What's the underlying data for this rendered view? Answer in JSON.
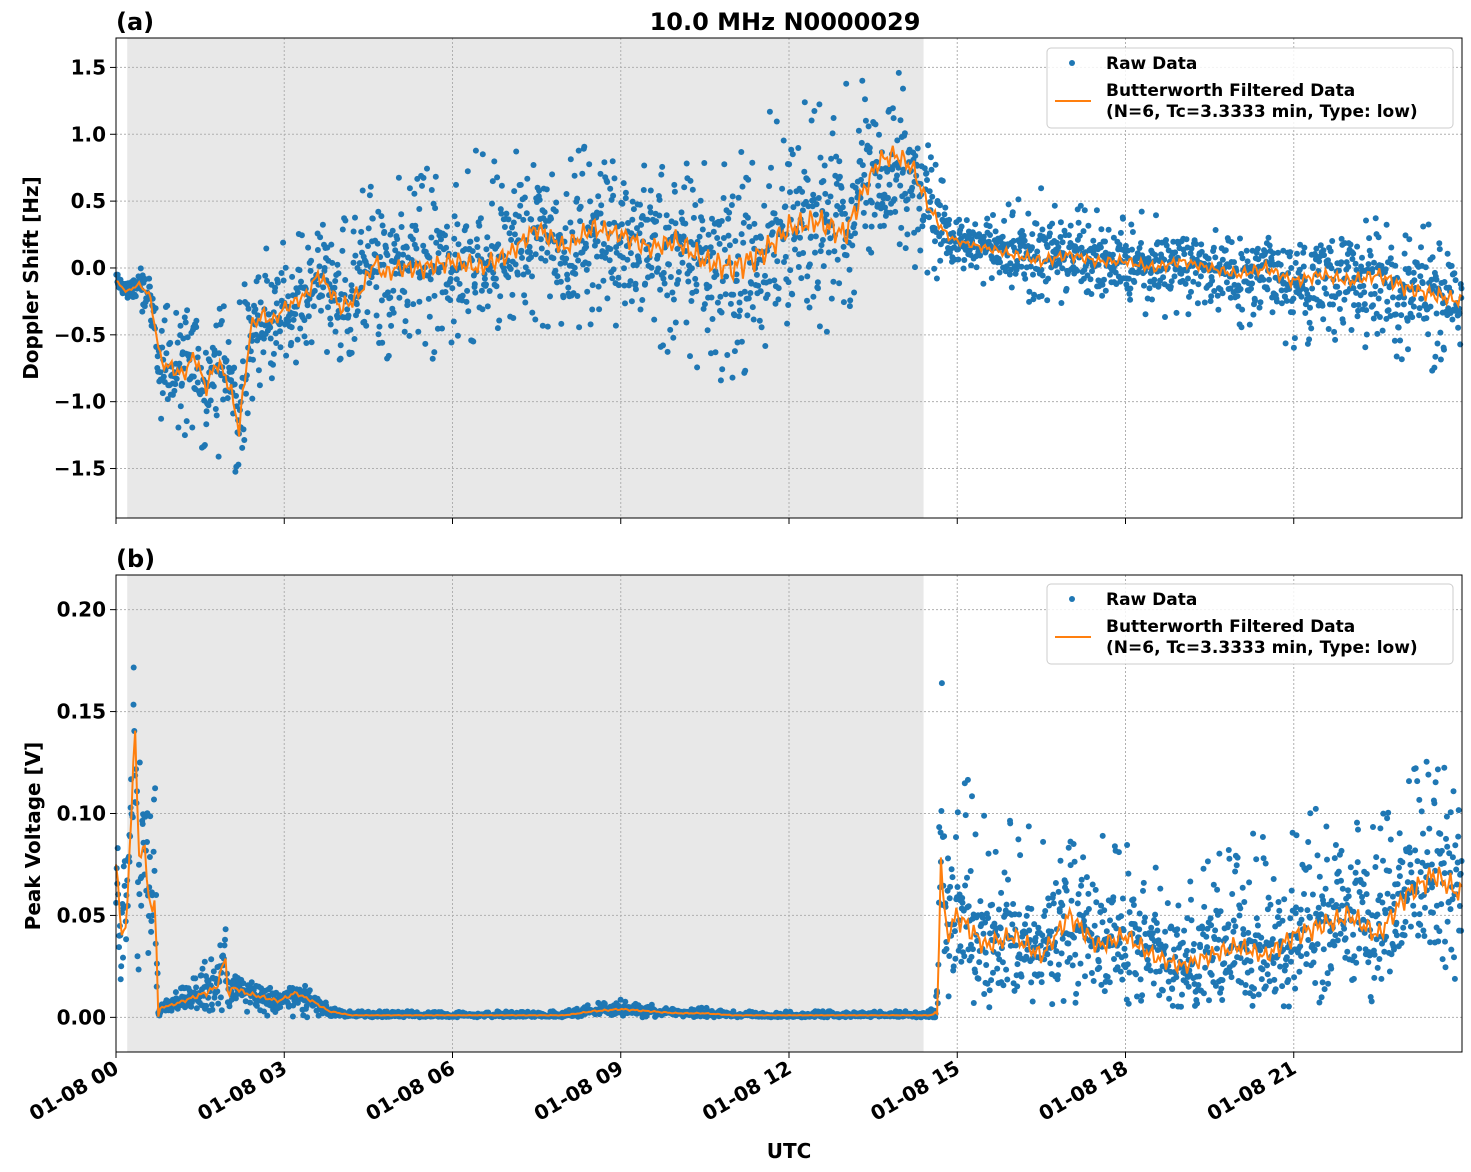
{
  "figure": {
    "title": "10.0 MHz N0000029",
    "xlabel": "UTC"
  },
  "colors": {
    "raw": "#1f77b4",
    "filtered": "#ff7f0e",
    "night_shade": "#e8e8e8"
  },
  "chart_data": [
    {
      "type": "scatter",
      "panel_label": "(a)",
      "ylabel": "Doppler Shift [Hz]",
      "xlim_hours": [
        0,
        24
      ],
      "ylim": [
        -1.87,
        1.72
      ],
      "yticks": [
        -1.5,
        -1.0,
        -0.5,
        0.0,
        0.5,
        1.0,
        1.5
      ],
      "ytick_labels": [
        "−1.5",
        "−1.0",
        "−0.5",
        "0.0",
        "0.5",
        "1.0",
        "1.5"
      ],
      "xticks_hours": [
        0,
        3,
        6,
        9,
        12,
        15,
        18,
        21
      ],
      "xtick_labels": [
        "01-08 00",
        "01-08 03",
        "01-08 06",
        "01-08 09",
        "01-08 12",
        "01-08 15",
        "01-08 18",
        "01-08 21"
      ],
      "shaded_region_hours": [
        0.2,
        14.4
      ],
      "grid": true,
      "legend_position": "top-right",
      "legend": {
        "raw": "Raw Data",
        "filtered_line1": "Butterworth Filtered Data",
        "filtered_line2": "(N=6, Tc=3.3333 min, Type: low)"
      },
      "series": [
        {
          "name": "Butterworth Filtered Data",
          "x_hours": [
            0,
            0.2,
            0.4,
            0.6,
            0.8,
            1.0,
            1.2,
            1.4,
            1.6,
            1.8,
            2.0,
            2.2,
            2.4,
            2.6,
            2.8,
            3.0,
            3.2,
            3.4,
            3.6,
            3.8,
            4.0,
            4.2,
            4.4,
            4.6,
            4.8,
            5.0,
            5.5,
            6.0,
            6.5,
            7.0,
            7.5,
            8.0,
            8.5,
            9.0,
            9.5,
            10.0,
            10.5,
            11.0,
            11.5,
            12.0,
            12.5,
            13.0,
            13.3,
            13.6,
            13.9,
            14.2,
            14.5,
            14.8,
            15.0,
            15.5,
            16.0,
            16.5,
            17.0,
            17.5,
            18.0,
            18.5,
            19.0,
            19.5,
            20.0,
            20.5,
            21.0,
            21.5,
            22.0,
            22.5,
            23.0,
            23.5,
            24.0
          ],
          "y": [
            -0.1,
            -0.18,
            -0.12,
            -0.2,
            -0.7,
            -0.75,
            -0.8,
            -0.65,
            -0.9,
            -0.7,
            -0.85,
            -1.2,
            -0.45,
            -0.35,
            -0.4,
            -0.3,
            -0.25,
            -0.2,
            -0.05,
            -0.15,
            -0.3,
            -0.25,
            -0.15,
            0.05,
            -0.05,
            0.0,
            0.0,
            0.05,
            0.0,
            0.1,
            0.3,
            0.15,
            0.3,
            0.25,
            0.15,
            0.2,
            0.05,
            0.0,
            0.1,
            0.3,
            0.35,
            0.25,
            0.55,
            0.8,
            0.85,
            0.75,
            0.45,
            0.25,
            0.2,
            0.15,
            0.1,
            0.05,
            0.1,
            0.05,
            0.05,
            0.0,
            0.05,
            0.0,
            -0.05,
            0.0,
            -0.1,
            -0.05,
            -0.1,
            -0.05,
            -0.15,
            -0.2,
            -0.25
          ]
        },
        {
          "name": "Raw Data",
          "x_hours": [
            0,
            0.2,
            0.4,
            0.6,
            0.8,
            1.0,
            1.2,
            1.4,
            1.6,
            1.8,
            2.0,
            2.2,
            2.4,
            2.6,
            2.8,
            3.0,
            3.2,
            3.4,
            3.6,
            3.8,
            4.0,
            4.2,
            4.4,
            4.6,
            4.8,
            5.0,
            5.5,
            6.0,
            6.5,
            7.0,
            7.5,
            8.0,
            8.5,
            9.0,
            9.5,
            10.0,
            10.5,
            11.0,
            11.5,
            12.0,
            12.5,
            13.0,
            13.3,
            13.6,
            13.9,
            14.2,
            14.5,
            14.8,
            15.0,
            15.5,
            16.0,
            16.5,
            17.0,
            17.5,
            18.0,
            18.5,
            19.0,
            19.5,
            20.0,
            20.5,
            21.0,
            21.5,
            22.0,
            22.5,
            23.0,
            23.5,
            24.0
          ],
          "y_min": [
            -0.3,
            -0.3,
            -0.3,
            -0.4,
            -1.2,
            -1.3,
            -1.4,
            -1.3,
            -1.5,
            -1.4,
            -1.6,
            -1.7,
            -1.0,
            -0.9,
            -0.9,
            -0.8,
            -0.75,
            -0.7,
            -0.6,
            -0.7,
            -0.8,
            -0.75,
            -0.7,
            -0.6,
            -0.7,
            -0.6,
            -0.7,
            -0.65,
            -0.6,
            -0.55,
            -0.5,
            -0.5,
            -0.45,
            -0.5,
            -0.6,
            -0.7,
            -0.8,
            -0.9,
            -0.85,
            -0.6,
            -0.5,
            -0.5,
            -0.2,
            0.0,
            0.1,
            0.0,
            -0.1,
            -0.1,
            0.0,
            -0.15,
            -0.2,
            -0.3,
            -0.25,
            -0.3,
            -0.3,
            -0.4,
            -0.35,
            -0.4,
            -0.45,
            -0.5,
            -0.6,
            -0.55,
            -0.6,
            -0.6,
            -0.7,
            -0.8,
            -0.85
          ],
          "y_max": [
            -0.05,
            -0.05,
            0.0,
            0.0,
            -0.3,
            -0.2,
            -0.3,
            -0.2,
            -0.3,
            -0.2,
            -0.25,
            -0.1,
            0.1,
            0.2,
            0.15,
            0.2,
            0.25,
            0.3,
            0.4,
            0.35,
            0.5,
            0.55,
            0.6,
            0.7,
            0.65,
            0.7,
            0.75,
            0.8,
            0.9,
            0.85,
            0.95,
            0.9,
            1.0,
            0.9,
            0.8,
            0.9,
            1.0,
            1.1,
            1.2,
            1.2,
            1.3,
            1.4,
            1.45,
            1.5,
            1.55,
            1.4,
            0.9,
            0.6,
            0.45,
            0.4,
            0.5,
            0.6,
            0.5,
            0.45,
            0.4,
            0.45,
            0.35,
            0.3,
            0.3,
            0.35,
            0.3,
            0.3,
            0.35,
            0.4,
            0.45,
            0.35,
            0.2
          ]
        }
      ]
    },
    {
      "type": "scatter",
      "panel_label": "(b)",
      "ylabel": "Peak Voltage [V]",
      "xlim_hours": [
        0,
        24
      ],
      "ylim": [
        -0.017,
        0.217
      ],
      "yticks": [
        0.0,
        0.05,
        0.1,
        0.15,
        0.2
      ],
      "ytick_labels": [
        "0.00",
        "0.05",
        "0.10",
        "0.15",
        "0.20"
      ],
      "xticks_hours": [
        0,
        3,
        6,
        9,
        12,
        15,
        18,
        21
      ],
      "xtick_labels": [
        "01-08 00",
        "01-08 03",
        "01-08 06",
        "01-08 09",
        "01-08 12",
        "01-08 15",
        "01-08 18",
        "01-08 21"
      ],
      "shaded_region_hours": [
        0.2,
        14.4
      ],
      "grid": true,
      "legend_position": "top-right",
      "legend": {
        "raw": "Raw Data",
        "filtered_line1": "Butterworth Filtered Data",
        "filtered_line2": "(N=6, Tc=3.3333 min, Type: low)"
      },
      "series": [
        {
          "name": "Butterworth Filtered Data",
          "x_hours": [
            0,
            0.1,
            0.2,
            0.3,
            0.35,
            0.4,
            0.5,
            0.6,
            0.7,
            0.75,
            0.8,
            1.0,
            1.2,
            1.4,
            1.6,
            1.8,
            1.95,
            2.0,
            2.1,
            2.3,
            2.6,
            2.9,
            3.2,
            3.5,
            3.8,
            4.2,
            5.0,
            6.0,
            7.0,
            8.0,
            8.5,
            9.0,
            9.5,
            10.0,
            10.5,
            11.0,
            12.0,
            13.0,
            14.0,
            14.5,
            14.65,
            14.7,
            14.8,
            15.0,
            15.5,
            16.0,
            16.5,
            17.0,
            17.5,
            18.0,
            18.5,
            19.0,
            19.5,
            20.0,
            20.5,
            21.0,
            21.5,
            22.0,
            22.5,
            23.0,
            23.5,
            24.0
          ],
          "y": [
            0.075,
            0.04,
            0.05,
            0.12,
            0.15,
            0.07,
            0.09,
            0.05,
            0.06,
            0.0,
            0.005,
            0.006,
            0.008,
            0.01,
            0.012,
            0.015,
            0.03,
            0.01,
            0.015,
            0.012,
            0.01,
            0.008,
            0.012,
            0.008,
            0.003,
            0.001,
            0.001,
            0.001,
            0.001,
            0.001,
            0.003,
            0.004,
            0.003,
            0.002,
            0.002,
            0.001,
            0.001,
            0.001,
            0.001,
            0.001,
            0.002,
            0.08,
            0.04,
            0.05,
            0.035,
            0.04,
            0.03,
            0.05,
            0.035,
            0.04,
            0.03,
            0.025,
            0.03,
            0.035,
            0.03,
            0.04,
            0.045,
            0.05,
            0.04,
            0.06,
            0.07,
            0.06
          ]
        },
        {
          "name": "Raw Data",
          "x_hours": [
            0,
            0.1,
            0.2,
            0.3,
            0.35,
            0.4,
            0.5,
            0.6,
            0.7,
            0.75,
            0.8,
            1.0,
            1.2,
            1.4,
            1.6,
            1.8,
            1.95,
            2.0,
            2.1,
            2.3,
            2.6,
            2.9,
            3.2,
            3.5,
            3.8,
            4.2,
            5.0,
            6.0,
            7.0,
            8.0,
            8.5,
            9.0,
            9.5,
            10.0,
            10.5,
            11.0,
            12.0,
            13.0,
            14.0,
            14.5,
            14.65,
            14.7,
            14.8,
            15.0,
            15.5,
            16.0,
            16.5,
            17.0,
            17.5,
            18.0,
            18.5,
            19.0,
            19.5,
            20.0,
            20.5,
            21.0,
            21.5,
            22.0,
            22.5,
            23.0,
            23.5,
            24.0
          ],
          "y_min": [
            0.01,
            0.01,
            0.02,
            0.03,
            0.03,
            0.02,
            0.02,
            0.02,
            0.02,
            0.0,
            0.0,
            0.0,
            0.0,
            0.0,
            0.0,
            0.0,
            0.0,
            0.0,
            0.0,
            0.0,
            0.0,
            0.0,
            0.0,
            0.0,
            0.0,
            0.0,
            0.0,
            0.0,
            0.0,
            0.0,
            0.0,
            0.0,
            0.0,
            0.0,
            0.0,
            0.0,
            0.0,
            0.0,
            0.0,
            0.0,
            0.0,
            0.01,
            0.01,
            0.01,
            0.005,
            0.005,
            0.005,
            0.005,
            0.005,
            0.005,
            0.005,
            0.005,
            0.005,
            0.005,
            0.005,
            0.005,
            0.005,
            0.005,
            0.005,
            0.01,
            0.01,
            0.01
          ],
          "y_max": [
            0.1,
            0.07,
            0.1,
            0.19,
            0.19,
            0.14,
            0.12,
            0.1,
            0.12,
            0.01,
            0.01,
            0.012,
            0.015,
            0.02,
            0.03,
            0.03,
            0.057,
            0.025,
            0.025,
            0.02,
            0.018,
            0.015,
            0.018,
            0.014,
            0.006,
            0.003,
            0.003,
            0.003,
            0.003,
            0.003,
            0.007,
            0.009,
            0.007,
            0.005,
            0.005,
            0.003,
            0.003,
            0.003,
            0.003,
            0.003,
            0.02,
            0.205,
            0.12,
            0.13,
            0.1,
            0.1,
            0.09,
            0.105,
            0.09,
            0.095,
            0.085,
            0.08,
            0.09,
            0.095,
            0.09,
            0.11,
            0.105,
            0.11,
            0.1,
            0.12,
            0.13,
            0.125
          ]
        }
      ]
    }
  ]
}
